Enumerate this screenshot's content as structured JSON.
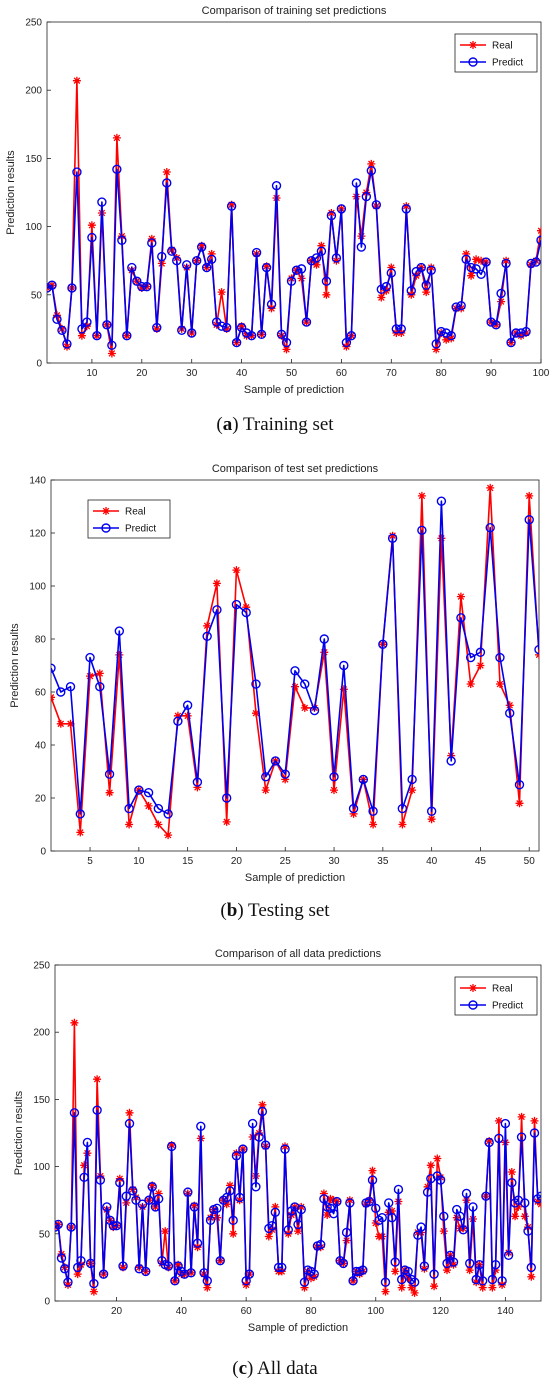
{
  "colors": {
    "real": "#ff0000",
    "predict": "#0000ee",
    "axis": "#222222"
  },
  "panels": [
    {
      "caption_letter": "a",
      "caption_text": " Training set",
      "chart_data": {
        "type": "line",
        "title": "Comparison of training set predictions",
        "xlabel": "Sample of prediction",
        "ylabel": "Prediction results",
        "xlim": [
          1,
          100
        ],
        "ylim": [
          0,
          250
        ],
        "xticks": [
          10,
          20,
          30,
          40,
          50,
          60,
          70,
          80,
          90,
          100
        ],
        "yticks": [
          0,
          50,
          100,
          150,
          200,
          250
        ],
        "legend": "top-right",
        "grid": false,
        "series": [
          {
            "name": "Real",
            "marker": "star",
            "values": [
              55,
              57,
              35,
              25,
              12,
              55,
              207,
              20,
              27,
              101,
              20,
              110,
              28,
              7,
              165,
              93,
              20,
              68,
              60,
              55,
              56,
              91,
              25,
              73,
              140,
              83,
              77,
              25,
              70,
              22,
              75,
              86,
              70,
              80,
              28,
              52,
              25,
              116,
              15,
              27,
              20,
              20,
              80,
              21,
              71,
              40,
              121,
              20,
              10,
              62,
              68,
              62,
              30,
              75,
              72,
              86,
              50,
              110,
              75,
              113,
              12,
              20,
              122,
              93,
              125,
              146,
              115,
              48,
              53,
              70,
              22,
              22,
              115,
              50,
              64,
              70,
              52,
              70,
              10,
              22,
              17,
              18,
              40,
              40,
              80,
              64,
              76,
              75,
              74,
              30,
              28,
              45,
              75,
              15,
              22,
              20,
              22,
              72,
              75,
              97
            ]
          },
          {
            "name": "Predict",
            "marker": "circle",
            "values": [
              55,
              57,
              32,
              24,
              14,
              55,
              140,
              25,
              30,
              92,
              20,
              118,
              28,
              13,
              142,
              90,
              20,
              70,
              60,
              56,
              56,
              88,
              26,
              78,
              132,
              82,
              75,
              24,
              72,
              22,
              75,
              85,
              70,
              76,
              30,
              27,
              26,
              115,
              15,
              26,
              22,
              20,
              81,
              21,
              70,
              43,
              130,
              21,
              15,
              60,
              68,
              69,
              30,
              75,
              77,
              82,
              60,
              108,
              77,
              113,
              15,
              20,
              132,
              85,
              122,
              141,
              116,
              54,
              56,
              66,
              25,
              25,
              113,
              53,
              67,
              70,
              57,
              68,
              14,
              23,
              22,
              20,
              41,
              42,
              76,
              70,
              69,
              65,
              74,
              30,
              28,
              51,
              73,
              15,
              22,
              22,
              23,
              73,
              74,
              90
            ]
          }
        ]
      }
    },
    {
      "caption_letter": "b",
      "caption_text": " Testing set",
      "chart_data": {
        "type": "line",
        "title": "Comparison of test set predictions",
        "xlabel": "Sample of prediction",
        "ylabel": "Prediction results",
        "xlim": [
          1,
          51
        ],
        "ylim": [
          0,
          140
        ],
        "xticks": [
          5,
          10,
          15,
          20,
          25,
          30,
          35,
          40,
          45,
          50
        ],
        "yticks": [
          0,
          20,
          40,
          60,
          80,
          100,
          120,
          140
        ],
        "legend": "top-left",
        "grid": false,
        "series": [
          {
            "name": "Real",
            "marker": "star",
            "values": [
              58,
              48,
              48,
              7,
              66,
              67,
              22,
              74,
              10,
              23,
              17,
              10,
              6,
              51,
              51,
              24,
              85,
              101,
              11,
              106,
              92,
              52,
              23,
              34,
              27,
              62,
              54,
              54,
              75,
              23,
              61,
              14,
              27,
              10,
              78,
              119,
              10,
              23,
              134,
              12,
              118,
              36,
              96,
              63,
              70,
              137,
              63,
              55,
              18,
              134,
              74
            ]
          },
          {
            "name": "Predict",
            "marker": "circle",
            "values": [
              69,
              60,
              62,
              14,
              73,
              62,
              29,
              83,
              16,
              23,
              22,
              16,
              14,
              49,
              55,
              26,
              81,
              91,
              20,
              93,
              90,
              63,
              28,
              34,
              29,
              68,
              63,
              53,
              80,
              28,
              70,
              16,
              27,
              15,
              78,
              118,
              16,
              27,
              121,
              15,
              132,
              34,
              88,
              73,
              75,
              122,
              73,
              52,
              25,
              125,
              76
            ]
          }
        ]
      }
    },
    {
      "caption_letter": "c",
      "caption_text": " All data",
      "chart_data": {
        "type": "line",
        "title": "Comparison of all data predictions",
        "xlabel": "Sample of prediction",
        "ylabel": "Prediction results",
        "xlim": [
          1,
          151
        ],
        "ylim": [
          0,
          250
        ],
        "xticks": [
          20,
          40,
          60,
          80,
          100,
          120,
          140
        ],
        "yticks": [
          0,
          50,
          100,
          150,
          200,
          250
        ],
        "legend": "top-right",
        "grid": false,
        "series": [
          {
            "name": "Real",
            "marker": "star",
            "values": [
              55,
              57,
              35,
              25,
              12,
              55,
              207,
              20,
              27,
              101,
              110,
              28,
              7,
              165,
              93,
              20,
              68,
              60,
              55,
              56,
              91,
              25,
              73,
              140,
              83,
              77,
              25,
              70,
              22,
              75,
              86,
              70,
              80,
              28,
              52,
              25,
              116,
              15,
              27,
              20,
              20,
              80,
              21,
              71,
              40,
              121,
              20,
              10,
              62,
              68,
              62,
              30,
              75,
              72,
              86,
              50,
              110,
              75,
              113,
              12,
              20,
              122,
              93,
              125,
              146,
              115,
              48,
              53,
              70,
              22,
              22,
              115,
              50,
              64,
              70,
              52,
              70,
              10,
              22,
              17,
              18,
              40,
              40,
              80,
              64,
              76,
              75,
              74,
              30,
              28,
              45,
              75,
              15,
              22,
              20,
              22,
              72,
              75,
              97,
              58,
              48,
              48,
              7,
              66,
              67,
              22,
              74,
              10,
              23,
              17,
              10,
              6,
              51,
              51,
              24,
              85,
              101,
              11,
              106,
              92,
              52,
              23,
              34,
              27,
              62,
              54,
              54,
              75,
              23,
              61,
              14,
              27,
              10,
              78,
              119,
              10,
              23,
              134,
              12,
              118,
              36,
              96,
              63,
              70,
              137,
              63,
              55,
              18,
              134,
              74,
              72
            ]
          },
          {
            "name": "Predict",
            "marker": "circle",
            "values": [
              55,
              57,
              32,
              24,
              14,
              55,
              140,
              25,
              30,
              92,
              118,
              28,
              13,
              142,
              90,
              20,
              70,
              60,
              56,
              56,
              88,
              26,
              78,
              132,
              82,
              75,
              24,
              72,
              22,
              75,
              85,
              70,
              76,
              30,
              27,
              26,
              115,
              15,
              26,
              22,
              20,
              81,
              21,
              70,
              43,
              130,
              21,
              15,
              60,
              68,
              69,
              30,
              75,
              77,
              82,
              60,
              108,
              77,
              113,
              15,
              20,
              132,
              85,
              122,
              141,
              116,
              54,
              56,
              66,
              25,
              25,
              113,
              53,
              67,
              70,
              57,
              68,
              14,
              23,
              22,
              20,
              41,
              42,
              76,
              70,
              69,
              65,
              74,
              30,
              28,
              51,
              73,
              15,
              22,
              22,
              23,
              73,
              74,
              90,
              69,
              60,
              62,
              14,
              73,
              62,
              29,
              83,
              16,
              23,
              22,
              16,
              14,
              49,
              55,
              26,
              81,
              91,
              20,
              93,
              90,
              63,
              28,
              34,
              29,
              68,
              63,
              53,
              80,
              28,
              70,
              16,
              27,
              15,
              78,
              118,
              16,
              27,
              121,
              15,
              132,
              34,
              88,
              73,
              75,
              122,
              73,
              52,
              25,
              125,
              76,
              78
            ]
          }
        ]
      }
    }
  ]
}
